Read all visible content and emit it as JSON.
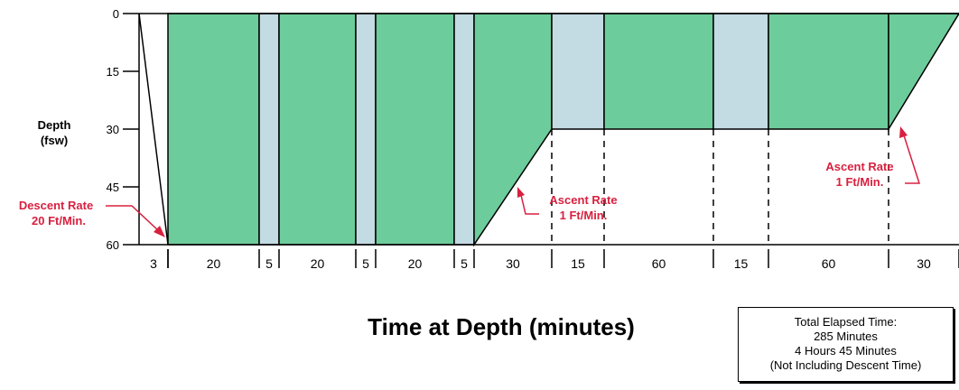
{
  "y_axis": {
    "label_line1": "Depth",
    "label_line2": "(fsw)",
    "ticks": [
      "0",
      "15",
      "30",
      "45",
      "60"
    ]
  },
  "x_title": "Time at Depth (minutes)",
  "segments": [
    {
      "duration": 3,
      "label": "3",
      "depth_start": 0,
      "depth_end": 60,
      "type": "descent"
    },
    {
      "duration": 20,
      "label": "20",
      "depth_start": 60,
      "depth_end": 60,
      "type": "oxygen"
    },
    {
      "duration": 5,
      "label": "5",
      "depth_start": 60,
      "depth_end": 60,
      "type": "air"
    },
    {
      "duration": 20,
      "label": "20",
      "depth_start": 60,
      "depth_end": 60,
      "type": "oxygen"
    },
    {
      "duration": 5,
      "label": "5",
      "depth_start": 60,
      "depth_end": 60,
      "type": "air"
    },
    {
      "duration": 20,
      "label": "20",
      "depth_start": 60,
      "depth_end": 60,
      "type": "oxygen"
    },
    {
      "duration": 5,
      "label": "5",
      "depth_start": 60,
      "depth_end": 60,
      "type": "air"
    },
    {
      "duration": 30,
      "label": "30",
      "depth_start": 60,
      "depth_end": 30,
      "type": "oxygen"
    },
    {
      "duration": 15,
      "label": "15",
      "depth_start": 30,
      "depth_end": 30,
      "type": "air"
    },
    {
      "duration": 60,
      "label": "60",
      "depth_start": 30,
      "depth_end": 30,
      "type": "oxygen"
    },
    {
      "duration": 15,
      "label": "15",
      "depth_start": 30,
      "depth_end": 30,
      "type": "air"
    },
    {
      "duration": 60,
      "label": "60",
      "depth_start": 30,
      "depth_end": 30,
      "type": "oxygen"
    },
    {
      "duration": 30,
      "label": "30",
      "depth_start": 30,
      "depth_end": 0,
      "type": "oxygen"
    }
  ],
  "annotations": {
    "descent": {
      "line1": "Descent Rate",
      "line2": "20 Ft/Min."
    },
    "ascent_1": {
      "line1": "Ascent Rate",
      "line2": "1 Ft/Min."
    },
    "ascent_2": {
      "line1": "Ascent Rate",
      "line2": "1 Ft/Min."
    }
  },
  "total_box": {
    "line1": "Total Elapsed Time:",
    "line2": "285 Minutes",
    "line3": "4 Hours 45 Minutes",
    "line4": "(Not Including Descent Time)"
  },
  "colors": {
    "oxygen": "#6dcc9b",
    "air": "#c3dbe3",
    "annotation": "#d8203f",
    "line": "#000000"
  }
}
